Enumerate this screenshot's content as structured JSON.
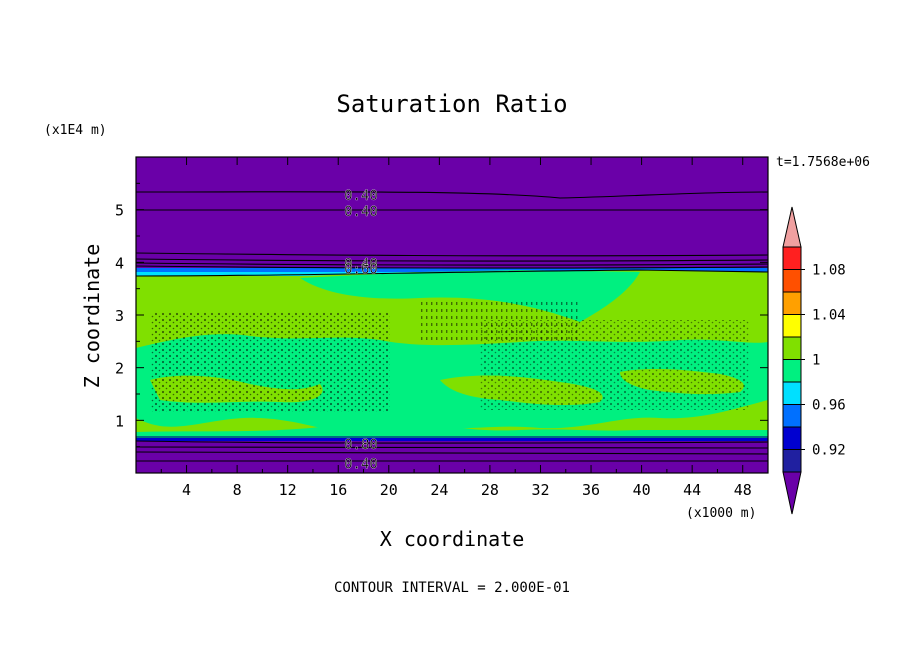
{
  "chart_data": {
    "type": "heatmap",
    "title": "Saturation Ratio",
    "xlabel": "X coordinate",
    "ylabel": "Z coordinate",
    "x_unit": "(x1000 m)",
    "y_unit": "(x1E4 m)",
    "time_label": "t=1.7568e+06",
    "footer": "CONTOUR INTERVAL = 2.000E-01",
    "xlim": [
      0,
      50
    ],
    "ylim": [
      0,
      6
    ],
    "x_ticks": [
      4,
      8,
      12,
      16,
      20,
      24,
      28,
      32,
      36,
      40,
      44,
      48
    ],
    "y_ticks": [
      1,
      2,
      3,
      4,
      5
    ],
    "colorbar": {
      "labels": [
        "1.08",
        "1.04",
        "1",
        "0.96",
        "0.92"
      ],
      "levels": [
        0.9,
        0.92,
        0.94,
        0.96,
        0.98,
        1.0,
        1.02,
        1.04,
        1.06,
        1.08,
        1.1
      ],
      "colors": [
        "#6a00a8",
        "#2020a0",
        "#0000d0",
        "#0070ff",
        "#00e0ff",
        "#00f080",
        "#80e000",
        "#ffff00",
        "#ffa000",
        "#ff5000",
        "#ff2020",
        "#f0a0a0"
      ]
    },
    "contour_labels": [
      {
        "text": "0.40",
        "x": 17.8,
        "z": 5.28
      },
      {
        "text": "0.40",
        "x": 17.8,
        "z": 4.97
      },
      {
        "text": "0.40",
        "x": 17.8,
        "z": 3.98
      },
      {
        "text": "0.60",
        "x": 17.8,
        "z": 3.88
      },
      {
        "text": "0.80",
        "x": 17.8,
        "z": 0.55
      },
      {
        "text": "0.40",
        "x": 17.8,
        "z": 0.18
      }
    ],
    "regions": {
      "sub_saturated_above_km": 38,
      "sub_saturated_below_km": 7,
      "near_saturation_band": [
        7,
        38
      ]
    }
  }
}
